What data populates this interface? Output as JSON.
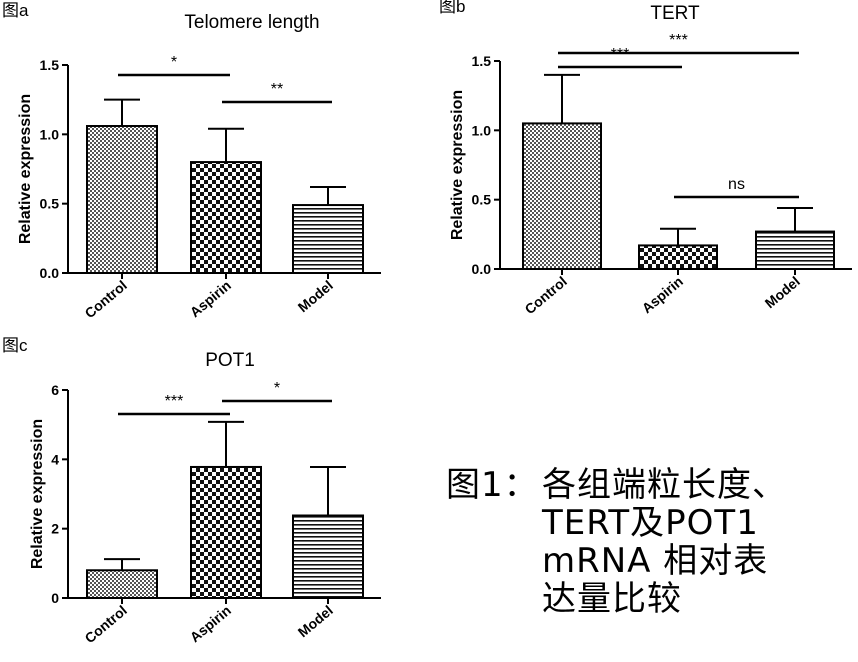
{
  "chart_data": [
    {
      "panel": "图a",
      "type": "bar",
      "title": "Telomere length",
      "ylabel": "Relative expression",
      "categories": [
        "Control",
        "Aspirin",
        "Model"
      ],
      "values": [
        1.06,
        0.8,
        0.49
      ],
      "errors": [
        0.19,
        0.24,
        0.13
      ],
      "ylim": [
        0,
        1.5
      ],
      "yticks": [
        "0.0",
        "0.5",
        "1.0",
        "1.5"
      ],
      "significance": [
        {
          "from": 0,
          "to": 1,
          "label": "*"
        },
        {
          "from": 1,
          "to": 2,
          "label": "**"
        }
      ]
    },
    {
      "panel": "图b",
      "type": "bar",
      "title": "TERT",
      "ylabel": "Relative expression",
      "categories": [
        "Control",
        "Aspirin",
        "Model"
      ],
      "values": [
        1.05,
        0.17,
        0.27
      ],
      "errors": [
        0.35,
        0.12,
        0.17
      ],
      "ylim": [
        0,
        1.5
      ],
      "yticks": [
        "0.0",
        "0.5",
        "1.0",
        "1.5"
      ],
      "significance": [
        {
          "from": 0,
          "to": 2,
          "label": "***"
        },
        {
          "from": 0,
          "to": 1,
          "label": "***"
        },
        {
          "from": 1,
          "to": 2,
          "label": "ns"
        }
      ]
    },
    {
      "panel": "图c",
      "type": "bar",
      "title": "POT1",
      "ylabel": "Relative expression",
      "categories": [
        "Control",
        "Aspirin",
        "Model"
      ],
      "values": [
        0.8,
        3.78,
        2.38
      ],
      "errors": [
        0.32,
        1.3,
        1.4
      ],
      "ylim": [
        0,
        6
      ],
      "yticks": [
        "0",
        "2",
        "4",
        "6"
      ],
      "significance": [
        {
          "from": 0,
          "to": 1,
          "label": "***"
        },
        {
          "from": 1,
          "to": 2,
          "label": "*"
        }
      ]
    }
  ],
  "caption": {
    "lead": "图1：",
    "lines": [
      "各组端粒长度、",
      "TERT及POT1",
      "mRNA 相对表",
      "达量比较"
    ]
  }
}
